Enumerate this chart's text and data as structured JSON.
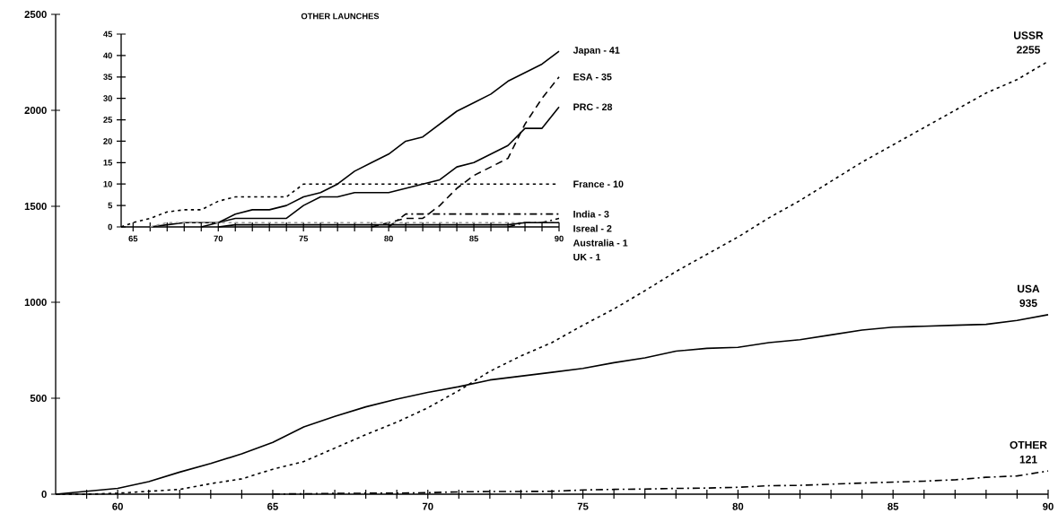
{
  "chart_data": [
    {
      "type": "line",
      "xlim": [
        58,
        90
      ],
      "ylim": [
        0,
        2500
      ],
      "xticks": [
        {
          "value": 59,
          "label": null
        },
        60,
        {
          "value": 61,
          "label": null
        },
        {
          "value": 62,
          "label": null
        },
        {
          "value": 63,
          "label": null
        },
        {
          "value": 64,
          "label": null
        },
        65,
        {
          "value": 66,
          "label": null
        },
        {
          "value": 67,
          "label": null
        },
        {
          "value": 68,
          "label": null
        },
        {
          "value": 69,
          "label": null
        },
        70,
        {
          "value": 71,
          "label": null
        },
        {
          "value": 72,
          "label": null
        },
        {
          "value": 73,
          "label": null
        },
        {
          "value": 74,
          "label": null
        },
        75,
        {
          "value": 76,
          "label": null
        },
        {
          "value": 77,
          "label": null
        },
        {
          "value": 78,
          "label": null
        },
        {
          "value": 79,
          "label": null
        },
        80,
        {
          "value": 81,
          "label": null
        },
        {
          "value": 82,
          "label": null
        },
        {
          "value": 83,
          "label": null
        },
        {
          "value": 84,
          "label": null
        },
        85,
        {
          "value": 86,
          "label": null
        },
        {
          "value": 87,
          "label": null
        },
        {
          "value": 88,
          "label": null
        },
        {
          "value": 89,
          "label": null
        },
        90
      ],
      "yticks": [
        0,
        500,
        1000,
        1500,
        2000,
        2500
      ],
      "series": [
        {
          "name": "USSR",
          "color": "#000000",
          "line_style": "dotted",
          "x": [
            58,
            59,
            60,
            61,
            62,
            63,
            64,
            65,
            66,
            67,
            68,
            69,
            70,
            71,
            72,
            73,
            74,
            75,
            76,
            77,
            78,
            79,
            80,
            81,
            82,
            83,
            84,
            85,
            86,
            87,
            88,
            89,
            90
          ],
          "values": [
            0,
            0,
            5,
            15,
            25,
            55,
            80,
            130,
            170,
            240,
            310,
            375,
            450,
            540,
            640,
            720,
            790,
            880,
            965,
            1060,
            1160,
            1250,
            1340,
            1440,
            1530,
            1630,
            1730,
            1820,
            1910,
            2000,
            2090,
            2160,
            2255
          ],
          "value_labels": [
            null,
            null,
            null,
            null,
            null,
            null,
            null,
            null,
            null,
            null,
            null,
            null,
            null,
            null,
            null,
            null,
            null,
            null,
            null,
            null,
            null,
            null,
            null,
            null,
            null,
            null,
            null,
            null,
            null,
            null,
            null,
            null,
            "2255"
          ]
        },
        {
          "name": "USA",
          "color": "#000000",
          "line_style": "solid",
          "x": [
            58,
            59,
            60,
            61,
            62,
            63,
            64,
            65,
            66,
            67,
            68,
            69,
            70,
            71,
            72,
            73,
            74,
            75,
            76,
            77,
            78,
            79,
            80,
            81,
            82,
            83,
            84,
            85,
            86,
            87,
            88,
            89,
            90
          ],
          "values": [
            0,
            15,
            30,
            65,
            115,
            160,
            210,
            270,
            350,
            405,
            455,
            495,
            530,
            560,
            595,
            615,
            635,
            655,
            685,
            710,
            745,
            760,
            765,
            790,
            805,
            830,
            855,
            870,
            875,
            880,
            885,
            905,
            935
          ],
          "value_labels": [
            null,
            null,
            null,
            null,
            null,
            null,
            null,
            null,
            null,
            null,
            null,
            null,
            null,
            null,
            null,
            null,
            null,
            null,
            null,
            null,
            null,
            null,
            null,
            null,
            null,
            null,
            null,
            null,
            null,
            null,
            null,
            null,
            "935"
          ]
        },
        {
          "name": "OTHER",
          "color": "#000000",
          "line_style": "dashdot",
          "x": [
            65,
            66,
            67,
            68,
            69,
            70,
            71,
            72,
            73,
            74,
            75,
            76,
            77,
            78,
            79,
            80,
            81,
            82,
            83,
            84,
            85,
            86,
            87,
            88,
            89,
            90
          ],
          "values": [
            1,
            2,
            4,
            5,
            5,
            8,
            12,
            14,
            14,
            15,
            22,
            25,
            27,
            30,
            32,
            36,
            44,
            46,
            52,
            58,
            63,
            68,
            75,
            88,
            95,
            121
          ],
          "value_labels": [
            null,
            null,
            null,
            null,
            null,
            null,
            null,
            null,
            null,
            null,
            null,
            null,
            null,
            null,
            null,
            null,
            null,
            null,
            null,
            null,
            null,
            null,
            null,
            null,
            null,
            "121"
          ]
        }
      ]
    },
    {
      "type": "line",
      "title": "OTHER LAUNCHES",
      "xlim": [
        64.3,
        90
      ],
      "ylim": [
        0,
        45
      ],
      "xticks": [
        65,
        {
          "value": 66,
          "label": null
        },
        {
          "value": 67,
          "label": null
        },
        {
          "value": 68,
          "label": null
        },
        {
          "value": 69,
          "label": null
        },
        70,
        {
          "value": 71,
          "label": null
        },
        {
          "value": 72,
          "label": null
        },
        {
          "value": 73,
          "label": null
        },
        {
          "value": 74,
          "label": null
        },
        75,
        {
          "value": 76,
          "label": null
        },
        {
          "value": 77,
          "label": null
        },
        {
          "value": 78,
          "label": null
        },
        {
          "value": 79,
          "label": null
        },
        80,
        {
          "value": 81,
          "label": null
        },
        {
          "value": 82,
          "label": null
        },
        {
          "value": 83,
          "label": null
        },
        {
          "value": 84,
          "label": null
        },
        85,
        {
          "value": 86,
          "label": null
        },
        {
          "value": 87,
          "label": null
        },
        {
          "value": 88,
          "label": null
        },
        {
          "value": 89,
          "label": null
        },
        90
      ],
      "yticks": [
        0,
        5,
        10,
        15,
        20,
        25,
        30,
        35,
        40,
        45
      ],
      "series": [
        {
          "name": "Japan - 41",
          "color": "#000000",
          "line_style": "solid",
          "x": [
            66,
            67,
            68,
            69,
            70,
            71,
            72,
            73,
            74,
            75,
            76,
            77,
            78,
            79,
            80,
            81,
            82,
            83,
            84,
            85,
            86,
            87,
            88,
            89,
            90
          ],
          "values": [
            0,
            0.5,
            1,
            1,
            1,
            3,
            4,
            4,
            5,
            7,
            8,
            10,
            13,
            15,
            17,
            20,
            21,
            24,
            27,
            29,
            31,
            34,
            36,
            38,
            41
          ]
        },
        {
          "name": "ESA - 35",
          "color": "#000000",
          "line_style": "dashed",
          "x": [
            79,
            80,
            81,
            82,
            83,
            84,
            85,
            86,
            87,
            88,
            89,
            90
          ],
          "values": [
            0,
            1,
            2,
            2,
            5,
            9,
            12,
            14,
            16,
            24,
            30,
            35
          ]
        },
        {
          "name": "PRC - 28",
          "color": "#000000",
          "line_style": "solid",
          "x": [
            69,
            70,
            71,
            72,
            73,
            74,
            75,
            76,
            77,
            78,
            79,
            80,
            81,
            82,
            83,
            84,
            85,
            86,
            87,
            88,
            89,
            90
          ],
          "values": [
            0,
            1,
            2,
            2,
            2,
            2,
            5,
            7,
            7,
            8,
            8,
            8,
            9,
            10,
            11,
            14,
            15,
            17,
            19,
            23,
            23,
            28
          ]
        },
        {
          "name": "France - 10",
          "color": "#000000",
          "line_style": "dotted",
          "x": [
            64.3,
            65,
            66,
            67,
            68,
            69,
            70,
            71,
            72,
            73,
            74,
            75,
            76,
            77,
            78,
            79,
            80,
            81,
            82,
            83,
            84,
            85,
            86,
            87,
            88,
            89,
            90
          ],
          "values": [
            0,
            1,
            2,
            3.5,
            4,
            4,
            6,
            7,
            7,
            7,
            7,
            10,
            10,
            10,
            10,
            10,
            10,
            10,
            10,
            10,
            10,
            10,
            10,
            10,
            10,
            10,
            10
          ]
        },
        {
          "name": "India - 3",
          "color": "#000000",
          "line_style": "dashdot",
          "x": [
            80,
            81,
            82,
            83,
            84,
            85,
            86,
            87,
            88,
            89,
            90
          ],
          "values": [
            0,
            3,
            3,
            3,
            3,
            3,
            3,
            3,
            3,
            3,
            3
          ]
        },
        {
          "name": "Isreal - 2",
          "color": "#000000",
          "line_style": "dashdot",
          "x": [
            87,
            88,
            89,
            90
          ],
          "values": [
            0,
            1,
            1,
            2
          ]
        },
        {
          "name": "Australia - 1",
          "color": "#999999",
          "line_style": "dotted",
          "x": [
            66,
            67,
            68,
            69,
            70,
            71,
            72,
            73,
            74,
            75,
            76,
            77,
            78,
            79,
            80,
            81,
            82,
            83,
            84,
            85,
            86,
            87,
            88,
            89,
            90
          ],
          "values": [
            0,
            1,
            1,
            1,
            1,
            1,
            1,
            1,
            1,
            1,
            1,
            1,
            1,
            1,
            1,
            1,
            1,
            1,
            1,
            1,
            1,
            1,
            1,
            1,
            1
          ]
        },
        {
          "name": "UK - 1",
          "color": "#000000",
          "line_style": "solid",
          "x": [
            70,
            71,
            72,
            73,
            74,
            75,
            76,
            77,
            78,
            79,
            80,
            81,
            82,
            83,
            84,
            85,
            86,
            87,
            88,
            89,
            90
          ],
          "values": [
            0,
            0.5,
            0.5,
            0.5,
            0.5,
            0.5,
            0.5,
            0.5,
            0.5,
            0.5,
            0.5,
            0.5,
            0.5,
            0.5,
            0.5,
            0.5,
            0.5,
            0.5,
            1,
            1,
            1
          ]
        }
      ]
    }
  ]
}
